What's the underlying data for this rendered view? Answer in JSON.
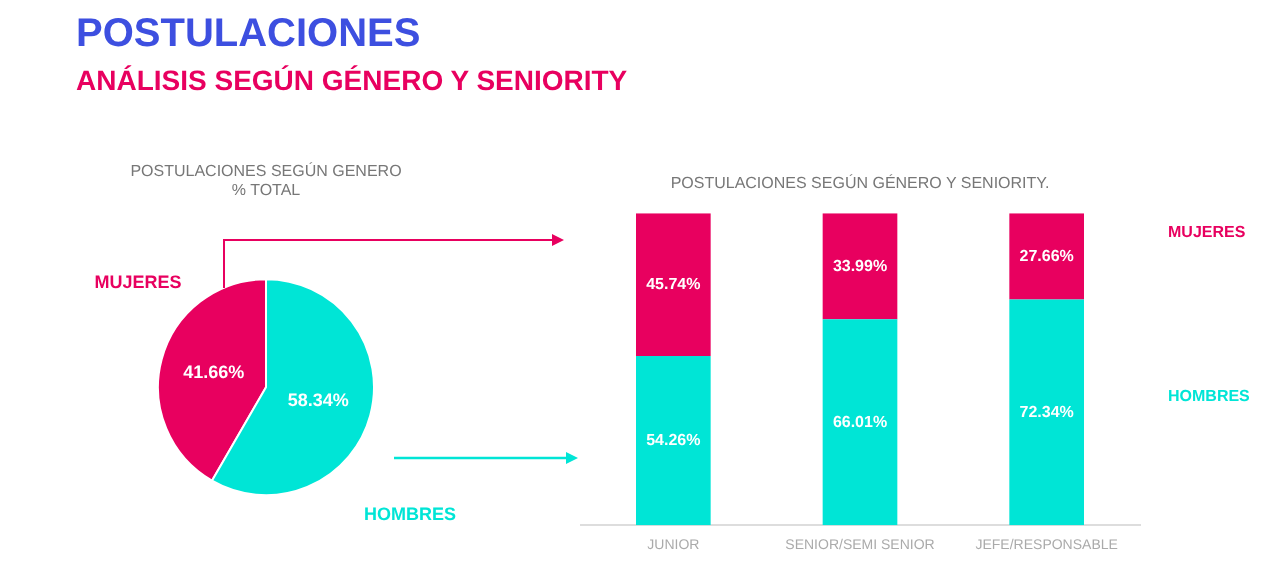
{
  "chart_data": [
    {
      "type": "pie",
      "title": "POSTULACIONES SEGÚN GENERO",
      "subtitle": "% TOTAL",
      "annotations": [
        "POSTULACIONES",
        "ANÁLISIS SEGÚN GÉNERO Y SENIORITY"
      ],
      "categories": [
        "MUJERES",
        "HOMBRES"
      ],
      "values": [
        41.66,
        58.34
      ],
      "colors": [
        "#e8005f",
        "#00e5d6"
      ],
      "value_labels": [
        "41.66%",
        "58.34%"
      ],
      "legend": false
    },
    {
      "type": "bar",
      "title": "POSTULACIONES SEGÚN GÉNERO Y SENIORITY.",
      "stacked": true,
      "categories": [
        "JUNIOR",
        "SENIOR/SEMI SENIOR",
        "JEFE/RESPONSABLE"
      ],
      "series": [
        {
          "name": "HOMBRES",
          "color": "#00e5d6",
          "values": [
            54.26,
            66.01,
            72.34
          ],
          "value_labels": [
            "54.26%",
            "66.01%",
            "72.34%"
          ]
        },
        {
          "name": "MUJERES",
          "color": "#e8005f",
          "values": [
            45.74,
            33.99,
            27.66
          ],
          "value_labels": [
            "45.74%",
            "33.99%",
            "27.66%"
          ]
        }
      ],
      "ylim": [
        0,
        100
      ],
      "tick_labels": "x",
      "grid": false,
      "legend": false
    }
  ]
}
